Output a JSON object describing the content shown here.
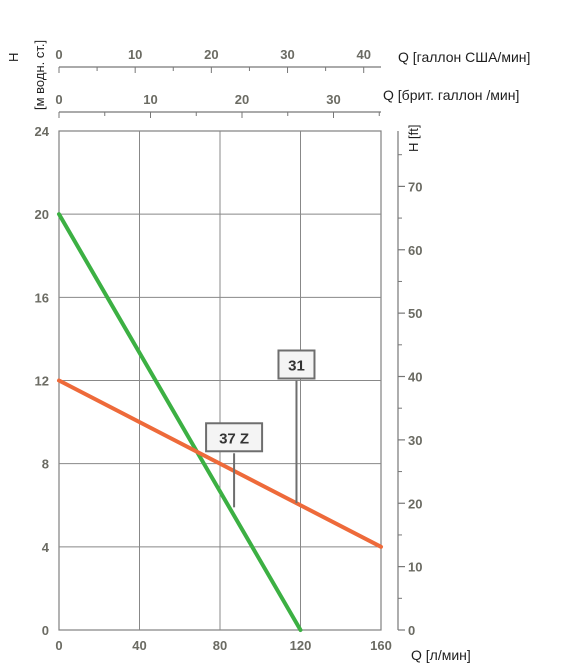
{
  "chart_data": {
    "type": "line",
    "xlabel": "Q [л/мин]",
    "ylabel": "H [м водн. ст.]",
    "ylabel_line1": "H",
    "ylabel_line2": "[м водн. ст.]",
    "secondary_ylabel": "H [ft]",
    "top_axis_1_label": "Q [галлон США/мин]",
    "top_axis_2_label": "Q [брит. галлон /мин]",
    "x_ticks": [
      "0",
      "40",
      "80",
      "120",
      "160"
    ],
    "y_ticks": [
      "0",
      "4",
      "8",
      "12",
      "16",
      "20",
      "24"
    ],
    "ft_ticks": [
      "0",
      "10",
      "20",
      "30",
      "40",
      "50",
      "60",
      "70"
    ],
    "us_ticks": [
      "0",
      "10",
      "20",
      "30",
      "40"
    ],
    "uk_ticks": [
      "0",
      "10",
      "20",
      "30"
    ],
    "xlim": [
      0,
      160
    ],
    "ylim": [
      0,
      24
    ],
    "ftlim": [
      0,
      78.74
    ],
    "uslim": [
      0,
      42.27
    ],
    "uklim": [
      0,
      35.19
    ],
    "grid": true,
    "series": [
      {
        "name": "37 Z",
        "x": [
          0,
          120
        ],
        "y": [
          20,
          0
        ],
        "color": "#3cb043"
      },
      {
        "name": "31",
        "x": [
          0,
          160
        ],
        "y": [
          12,
          4
        ],
        "color": "#ee6a3a"
      }
    ],
    "annotations": [
      {
        "label": "37 Z",
        "x": 87,
        "y": 8.5,
        "line_to_y": 5.9
      },
      {
        "label": "31",
        "x": 118,
        "y": 12,
        "line_to_y": 6.1
      }
    ]
  }
}
